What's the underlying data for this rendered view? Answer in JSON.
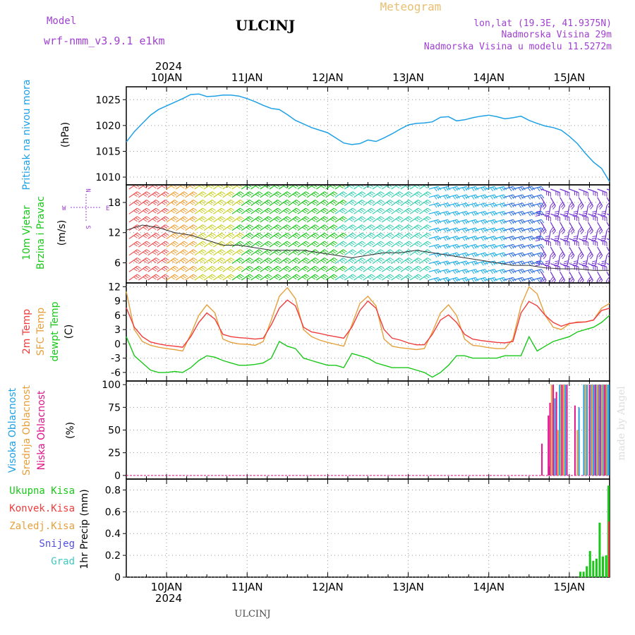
{
  "header": {
    "model_label": "Model",
    "model_name": "wrf-nmm_v3.9.1 e1km",
    "station": "ULCINJ",
    "meteogram_label": "Meteogram",
    "lonlat": "lon,lat (19.3E, 41.9375N)",
    "elevation": "Nadmorska Visina 29m",
    "model_elevation": "Nadmorska Visina u modelu 11.5272m",
    "footer_station": "ULCINJ",
    "watermark": "made by Angel"
  },
  "colors": {
    "pressure": "#1ea0e6",
    "wind": "#19c819",
    "temp2m": "#f03c3c",
    "sfc": "#e6a03c",
    "dewpt": "#19c819",
    "cloud_high": "#1ea0e6",
    "cloud_mid": "#e6a03c",
    "cloud_low": "#e0148c",
    "purple": "#a040d0",
    "tan": "#e8c070"
  },
  "chart_data": [
    {
      "type": "line",
      "panel": "pressure",
      "ylabel_main": "Pritisak na nivou mora",
      "ylabel_unit": "(hPa)",
      "yticks": [
        1010,
        1015,
        1020,
        1025
      ],
      "ylim": [
        1008.5,
        1027.5
      ],
      "xlim": [
        9.5,
        15.5
      ],
      "grid": true,
      "series": [
        {
          "x": [
            9.5,
            9.6,
            9.7,
            9.8,
            9.9,
            10.0,
            10.1,
            10.2,
            10.3,
            10.4,
            10.5,
            10.6,
            10.7,
            10.8,
            10.9,
            11.0,
            11.1,
            11.2,
            11.3,
            11.4,
            11.5,
            11.6,
            11.7,
            11.8,
            11.9,
            12.0,
            12.1,
            12.2,
            12.3,
            12.4,
            12.5,
            12.6,
            12.7,
            12.8,
            12.9,
            13.0,
            13.1,
            13.2,
            13.3,
            13.4,
            13.5,
            13.6,
            13.7,
            13.8,
            13.9,
            14.0,
            14.1,
            14.2,
            14.3,
            14.4,
            14.5,
            14.6,
            14.7,
            14.8,
            14.9,
            15.0,
            15.1,
            15.2,
            15.3,
            15.4,
            15.5
          ],
          "y": [
            1016.8,
            1018.8,
            1020.4,
            1022.0,
            1023.1,
            1023.8,
            1024.5,
            1025.2,
            1026.0,
            1026.1,
            1025.6,
            1025.7,
            1025.9,
            1025.9,
            1025.7,
            1025.2,
            1024.6,
            1023.9,
            1023.3,
            1023.1,
            1022.1,
            1021.0,
            1020.3,
            1019.6,
            1019.1,
            1018.6,
            1017.6,
            1016.6,
            1016.3,
            1016.5,
            1017.2,
            1016.9,
            1017.6,
            1018.4,
            1019.3,
            1020.1,
            1020.4,
            1020.5,
            1020.7,
            1021.6,
            1021.7,
            1020.9,
            1021.1,
            1021.5,
            1021.8,
            1022.0,
            1021.7,
            1021.3,
            1021.5,
            1021.8,
            1021.0,
            1020.4,
            1019.9,
            1019.6,
            1019.1,
            1017.9,
            1016.5,
            1014.6,
            1012.9,
            1011.7,
            1009.1
          ]
        }
      ]
    },
    {
      "type": "line",
      "panel": "wind",
      "ylabel_main": "10m Vjetar",
      "ylabel_sub": "Brzina i Pravac",
      "ylabel_unit": "(m/s)",
      "compass": {
        "n": "N",
        "s": "S",
        "e": "E",
        "w": "W"
      },
      "yticks": [
        6,
        12,
        18
      ],
      "ylim": [
        2,
        21.5
      ],
      "xlim": [
        9.5,
        15.5
      ],
      "grid": true,
      "series": [
        {
          "x": [
            9.5,
            9.7,
            9.9,
            10.1,
            10.3,
            10.5,
            10.7,
            10.9,
            11.1,
            11.3,
            11.5,
            11.7,
            11.9,
            12.1,
            12.3,
            12.5,
            12.7,
            12.9,
            13.1,
            13.3,
            13.5,
            13.7,
            13.9,
            14.1,
            14.3,
            14.5,
            14.7,
            14.9,
            15.1,
            15.3,
            15.5
          ],
          "y": [
            12.5,
            13.5,
            13.0,
            12.0,
            11.5,
            10.5,
            9.5,
            9.5,
            9.0,
            8.5,
            8.5,
            8.5,
            8.0,
            7.5,
            7.0,
            7.5,
            8.0,
            8.0,
            8.5,
            8.0,
            7.5,
            7.0,
            6.5,
            6.0,
            5.5,
            5.5,
            5.0,
            4.8,
            4.8,
            4.5,
            4.5
          ]
        }
      ]
    },
    {
      "type": "line",
      "panel": "temperature",
      "ylabel_lines": [
        "2m Temp",
        "SFC Temp",
        "dewpt Temp"
      ],
      "ylabel_unit": "(C)",
      "yticks": [
        -6,
        -3,
        0,
        3,
        6,
        9,
        12
      ],
      "ylim": [
        -7.8,
        12.8
      ],
      "xlim": [
        9.5,
        15.5
      ],
      "grid": true,
      "series": [
        {
          "name": "2m Temp",
          "x": [
            9.5,
            9.6,
            9.7,
            9.8,
            9.9,
            10.0,
            10.1,
            10.2,
            10.3,
            10.4,
            10.5,
            10.6,
            10.7,
            10.8,
            10.9,
            11.0,
            11.1,
            11.2,
            11.3,
            11.4,
            11.5,
            11.6,
            11.7,
            11.8,
            11.9,
            12.0,
            12.1,
            12.2,
            12.3,
            12.4,
            12.5,
            12.6,
            12.7,
            12.8,
            12.9,
            13.0,
            13.1,
            13.2,
            13.3,
            13.4,
            13.5,
            13.6,
            13.7,
            13.8,
            13.9,
            14.0,
            14.1,
            14.2,
            14.3,
            14.4,
            14.5,
            14.6,
            14.7,
            14.8,
            14.9,
            15.0,
            15.1,
            15.2,
            15.3,
            15.4,
            15.5
          ],
          "y": [
            7.6,
            3.5,
            1.5,
            0.4,
            0.0,
            -0.3,
            -0.5,
            -0.7,
            1.5,
            4.5,
            6.5,
            5.2,
            2.0,
            1.5,
            1.3,
            1.2,
            1.0,
            1.2,
            4.0,
            7.5,
            9.2,
            8.0,
            3.5,
            2.5,
            2.2,
            1.8,
            1.5,
            1.2,
            3.5,
            7.0,
            9.0,
            7.5,
            3.0,
            1.2,
            0.8,
            0.2,
            -0.2,
            -0.2,
            2.0,
            5.0,
            6.1,
            4.5,
            2.0,
            1.0,
            0.7,
            0.5,
            0.3,
            0.2,
            0.5,
            6.5,
            8.9,
            8.0,
            6.0,
            4.5,
            3.7,
            4.3,
            4.5,
            4.6,
            5.0,
            7.0,
            7.5
          ]
        },
        {
          "name": "SFC Temp",
          "x": [
            9.5,
            9.6,
            9.7,
            9.8,
            9.9,
            10.0,
            10.1,
            10.2,
            10.3,
            10.4,
            10.5,
            10.6,
            10.7,
            10.8,
            10.9,
            11.0,
            11.1,
            11.2,
            11.3,
            11.4,
            11.5,
            11.6,
            11.7,
            11.8,
            11.9,
            12.0,
            12.1,
            12.2,
            12.3,
            12.4,
            12.5,
            12.6,
            12.7,
            12.8,
            12.9,
            13.0,
            13.1,
            13.2,
            13.3,
            13.4,
            13.5,
            13.6,
            13.7,
            13.8,
            13.9,
            14.0,
            14.1,
            14.2,
            14.3,
            14.4,
            14.5,
            14.6,
            14.7,
            14.8,
            14.9,
            15.0,
            15.1,
            15.2,
            15.3,
            15.4,
            15.5
          ],
          "y": [
            11.0,
            3.0,
            0.5,
            -0.3,
            -0.7,
            -1.0,
            -1.2,
            -1.5,
            2.0,
            6.0,
            8.2,
            6.5,
            1.0,
            0.3,
            0.0,
            -0.1,
            -0.3,
            0.5,
            5.0,
            10.0,
            11.8,
            9.5,
            3.0,
            1.5,
            0.8,
            0.3,
            -0.1,
            -0.5,
            4.0,
            8.5,
            10.0,
            8.0,
            1.0,
            -0.5,
            -0.8,
            -1.0,
            -1.2,
            -1.0,
            2.5,
            6.5,
            8.2,
            6.0,
            1.0,
            -0.3,
            -0.5,
            -0.8,
            -1.0,
            -1.0,
            1.0,
            8.0,
            12.0,
            10.5,
            6.0,
            3.5,
            3.0,
            4.2,
            4.6,
            4.6,
            5.0,
            7.5,
            8.5
          ]
        },
        {
          "name": "dewpt Temp",
          "x": [
            9.5,
            9.6,
            9.7,
            9.8,
            9.9,
            10.0,
            10.1,
            10.2,
            10.3,
            10.4,
            10.5,
            10.6,
            10.7,
            10.8,
            10.9,
            11.0,
            11.1,
            11.2,
            11.3,
            11.4,
            11.5,
            11.6,
            11.7,
            11.8,
            11.9,
            12.0,
            12.1,
            12.2,
            12.3,
            12.4,
            12.5,
            12.6,
            12.7,
            12.8,
            12.9,
            13.0,
            13.1,
            13.2,
            13.3,
            13.4,
            13.5,
            13.6,
            13.7,
            13.8,
            13.9,
            14.0,
            14.1,
            14.2,
            14.3,
            14.4,
            14.5,
            14.6,
            14.7,
            14.8,
            14.9,
            15.0,
            15.1,
            15.2,
            15.3,
            15.4,
            15.5
          ],
          "y": [
            1.5,
            -2.5,
            -4.0,
            -5.5,
            -6.0,
            -6.0,
            -5.8,
            -6.0,
            -5.0,
            -3.5,
            -2.5,
            -2.8,
            -3.5,
            -4.0,
            -4.5,
            -4.5,
            -4.3,
            -4.0,
            -3.0,
            0.5,
            -0.5,
            -1.0,
            -3.0,
            -3.5,
            -4.0,
            -4.5,
            -4.5,
            -5.0,
            -2.0,
            -2.5,
            -3.0,
            -4.0,
            -4.5,
            -5.0,
            -5.0,
            -5.0,
            -5.5,
            -6.0,
            -7.0,
            -6.0,
            -4.5,
            -2.5,
            -2.5,
            -3.0,
            -3.0,
            -3.0,
            -3.0,
            -2.5,
            -2.5,
            -2.5,
            1.5,
            -1.5,
            -0.5,
            0.5,
            1.0,
            1.5,
            2.5,
            3.0,
            3.5,
            4.5,
            6.0
          ]
        }
      ]
    },
    {
      "type": "bar",
      "panel": "clouds",
      "ylabel_lines": [
        "Visoka Oblacnost",
        "Srednja Oblacnost",
        "Niska Oblacnost"
      ],
      "ylabel_unit": "(%)",
      "yticks": [
        0,
        25,
        50,
        75,
        100
      ],
      "ylim": [
        -4,
        104
      ],
      "xlim": [
        9.5,
        15.5
      ],
      "grid": true,
      "series": [
        {
          "name": "Visoka Oblacnost",
          "x": [
            14.75,
            14.82,
            14.88,
            14.95,
            15.12,
            15.18,
            15.22,
            15.27,
            15.3,
            15.33,
            15.36,
            15.39,
            15.42,
            15.45,
            15.47,
            15.49
          ],
          "y": [
            10,
            85,
            100,
            100,
            75,
            100,
            100,
            100,
            100,
            100,
            100,
            100,
            100,
            100,
            100,
            100
          ]
        },
        {
          "name": "Srednja Oblacnost",
          "x": [
            14.78,
            14.86,
            14.9,
            14.93,
            15.1,
            15.2,
            15.28,
            15.35,
            15.41,
            15.46
          ],
          "y": [
            100,
            50,
            100,
            100,
            50,
            100,
            100,
            100,
            100,
            100
          ]
        },
        {
          "name": "Niska Oblacnost",
          "x": [
            14.66,
            14.74,
            14.76,
            14.8,
            14.84,
            14.91,
            14.97,
            15.07,
            15.25,
            15.32,
            15.38,
            15.44
          ],
          "y": [
            35,
            66,
            80,
            100,
            92,
            100,
            100,
            77,
            100,
            100,
            100,
            100
          ]
        }
      ]
    },
    {
      "type": "bar",
      "panel": "precip",
      "legend": [
        "Ukupna Kisa",
        "Konvek.Kisa",
        "Zaledj.Kisa",
        "Snijeg",
        "Grad"
      ],
      "ylabel_unit": "1hr Precip (mm)",
      "yticks": [
        0,
        0.2,
        0.4,
        0.6,
        0.8
      ],
      "ylim": [
        0,
        0.9
      ],
      "xlim": [
        9.5,
        15.5
      ],
      "grid": true,
      "series": [
        {
          "name": "Ukupna Kisa",
          "x": [
            15.15,
            15.19,
            15.23,
            15.27,
            15.31,
            15.35,
            15.39,
            15.43,
            15.47,
            15.5
          ],
          "y": [
            0.05,
            0.05,
            0.1,
            0.24,
            0.15,
            0.17,
            0.5,
            0.19,
            0.2,
            0.84
          ]
        },
        {
          "name": "Konvek.Kisa",
          "x": [
            15.5
          ],
          "y": [
            0.51
          ]
        }
      ]
    }
  ],
  "xaxis": {
    "year": "2024",
    "days": [
      {
        "x": 10,
        "label": "10JAN"
      },
      {
        "x": 11,
        "label": "11JAN"
      },
      {
        "x": 12,
        "label": "12JAN"
      },
      {
        "x": 13,
        "label": "13JAN"
      },
      {
        "x": 14,
        "label": "14JAN"
      },
      {
        "x": 15,
        "label": "15JAN"
      }
    ]
  }
}
